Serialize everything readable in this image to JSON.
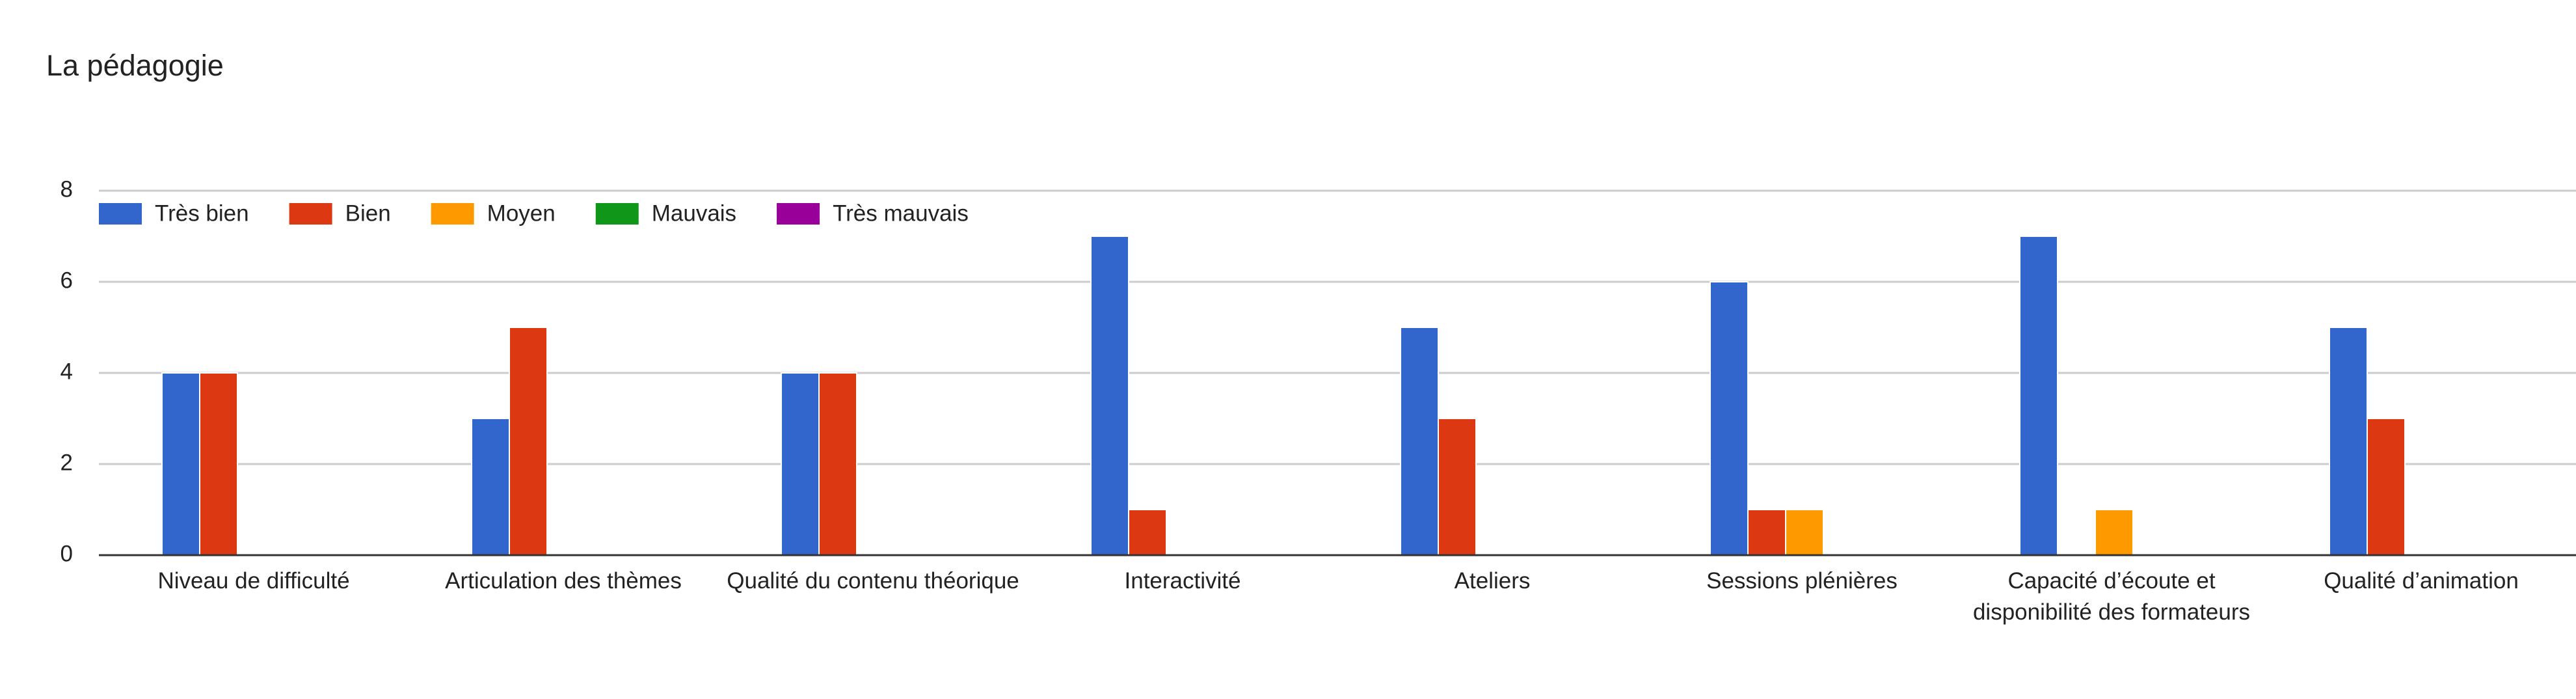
{
  "chart_data": {
    "type": "bar",
    "title": "La pédagogie",
    "categories": [
      "Niveau de difficulté",
      "Articulation des thèmes",
      "Qualité du contenu théorique",
      "Interactivité",
      "Ateliers",
      "Sessions plénières",
      "Capacité d’écoute et disponibilité des formateurs",
      "Qualité d’animation"
    ],
    "series": [
      {
        "name": "Très bien",
        "color": "#3366cc",
        "values": [
          4,
          3,
          4,
          7,
          5,
          6,
          7,
          5
        ]
      },
      {
        "name": "Bien",
        "color": "#dc3912",
        "values": [
          4,
          5,
          4,
          1,
          3,
          1,
          0,
          3
        ]
      },
      {
        "name": "Moyen",
        "color": "#ff9900",
        "values": [
          0,
          0,
          0,
          0,
          0,
          1,
          1,
          0
        ]
      },
      {
        "name": "Mauvais",
        "color": "#109618",
        "values": [
          0,
          0,
          0,
          0,
          0,
          0,
          0,
          0
        ]
      },
      {
        "name": "Très mauvais",
        "color": "#990099",
        "values": [
          0,
          0,
          0,
          0,
          0,
          0,
          0,
          0
        ]
      }
    ],
    "ylim": [
      0,
      8
    ],
    "yticks": [
      0,
      2,
      4,
      6,
      8
    ],
    "grid": true,
    "legend": "top"
  }
}
